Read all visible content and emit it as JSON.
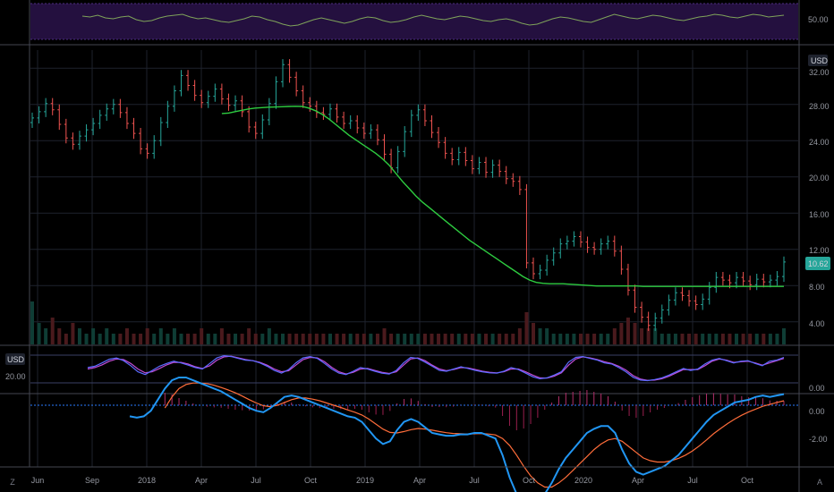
{
  "currency": "USD",
  "colors": {
    "background": "#000000",
    "grid": "#1e222d",
    "up": "#26a69a",
    "down": "#ef5350",
    "ma": "#2ecc40",
    "rsi_line": "#7fa35a",
    "rsi_band": "#24103f",
    "stoch_k": "#5b6bff",
    "stoch_d": "#c04cd6",
    "macd": "#2196f3",
    "signal": "#ff6d3a",
    "hist_pos": "#b22f6a",
    "hist_neg": "#9b1f4f",
    "zero_line": "#2a7bff",
    "last_price_bg": "#26a69a"
  },
  "corner_buttons": {
    "left": "Z",
    "right": "A"
  },
  "chart_data": [
    {
      "id": "rsi",
      "type": "line",
      "title": "",
      "y_tick_labels": [
        "50.00"
      ],
      "band": [
        30,
        70
      ],
      "series": [
        {
          "values": [
            56,
            55,
            57,
            54,
            53,
            55,
            56,
            52,
            50,
            51,
            54,
            56,
            57,
            58,
            55,
            53,
            54,
            52,
            50,
            49,
            51,
            53,
            56,
            55,
            52,
            50,
            47,
            45,
            46,
            49,
            52,
            54,
            52,
            50,
            48,
            50,
            53,
            55,
            54,
            51,
            49,
            50,
            52,
            55,
            57,
            55,
            53,
            52,
            54,
            56,
            55,
            53,
            51,
            50,
            52,
            53,
            51,
            48,
            46,
            47,
            50,
            53,
            55,
            54,
            52,
            50,
            49,
            52,
            55,
            58,
            56,
            54,
            53,
            55,
            57,
            56,
            54,
            52,
            51,
            53,
            55,
            56,
            58,
            57,
            55,
            54,
            56,
            58,
            57,
            55,
            56,
            57
          ]
        }
      ]
    },
    {
      "id": "price",
      "type": "candlestick",
      "title": "",
      "ylabel": "USD",
      "y_tick_labels": [
        "32.00",
        "28.00",
        "24.00",
        "20.00",
        "16.00",
        "12.00",
        "8.00",
        "4.00"
      ],
      "ylim": [
        1.5,
        34
      ],
      "last_price": "10.62",
      "x_tick_labels": [
        "Jun",
        "Sep",
        "2018",
        "Apr",
        "Jul",
        "Oct",
        "2019",
        "Apr",
        "Jul",
        "Oct",
        "2020",
        "Apr",
        "Jul",
        "Oct"
      ],
      "closes": [
        26.5,
        27.2,
        28.1,
        27.4,
        25.8,
        24.3,
        23.6,
        24.5,
        25.2,
        25.9,
        26.8,
        27.5,
        28.0,
        27.1,
        25.9,
        24.8,
        23.1,
        22.6,
        24.0,
        26.0,
        27.8,
        29.5,
        31.2,
        30.1,
        29.0,
        28.2,
        28.9,
        29.7,
        28.6,
        27.9,
        28.4,
        27.2,
        25.5,
        24.8,
        26.3,
        28.1,
        30.5,
        32.4,
        31.0,
        29.5,
        28.2,
        27.8,
        27.1,
        26.9,
        27.5,
        26.6,
        25.9,
        26.2,
        25.4,
        24.8,
        25.2,
        24.1,
        22.5,
        21.0,
        22.8,
        25.0,
        26.8,
        27.4,
        26.2,
        24.9,
        23.8,
        22.6,
        21.9,
        22.7,
        21.8,
        20.9,
        21.6,
        20.5,
        21.3,
        20.6,
        19.8,
        19.5,
        18.6,
        10.5,
        9.3,
        9.7,
        10.8,
        11.6,
        12.6,
        12.9,
        13.4,
        12.8,
        12.2,
        12.0,
        12.6,
        12.9,
        11.8,
        9.8,
        7.5,
        5.6,
        4.5,
        3.6,
        4.4,
        5.3,
        6.4,
        7.2,
        6.9,
        6.3,
        5.9,
        6.5,
        7.8,
        8.9,
        8.6,
        8.3,
        8.9,
        8.5,
        8.1,
        8.7,
        8.4,
        8.6,
        9.0,
        10.6
      ],
      "ma_start_index": 28,
      "ma": [
        27.0,
        27.05,
        27.2,
        27.35,
        27.5,
        27.6,
        27.65,
        27.7,
        27.72,
        27.75,
        27.78,
        27.8,
        27.78,
        27.6,
        27.3,
        26.9,
        26.4,
        25.8,
        25.2,
        24.6,
        24.1,
        23.6,
        23.1,
        22.6,
        22.0,
        21.3,
        20.4,
        19.5,
        18.7,
        17.9,
        17.2,
        16.6,
        16.0,
        15.4,
        14.8,
        14.2,
        13.6,
        13.0,
        12.5,
        12.0,
        11.5,
        11.0,
        10.5,
        10.0,
        9.5,
        9.0,
        8.6,
        8.35,
        8.25,
        8.2,
        8.2,
        8.2,
        8.15,
        8.1,
        8.05,
        8.0,
        7.95,
        7.95,
        7.95,
        7.95,
        7.95,
        7.95,
        7.95,
        7.9,
        7.9,
        7.9,
        7.9,
        7.9,
        7.9,
        7.9,
        7.9,
        7.9,
        7.9,
        7.9,
        7.9,
        7.9,
        7.9,
        7.9,
        7.9,
        7.9,
        7.9,
        7.9,
        7.9,
        7.9,
        7.9
      ],
      "volume": [
        0.8,
        0.4,
        0.3,
        0.5,
        0.3,
        0.2,
        0.4,
        0.3,
        0.2,
        0.3,
        0.2,
        0.3,
        0.2,
        0.2,
        0.3,
        0.2,
        0.2,
        0.3,
        0.2,
        0.3,
        0.2,
        0.3,
        0.2,
        0.2,
        0.2,
        0.3,
        0.2,
        0.2,
        0.3,
        0.2,
        0.2,
        0.2,
        0.3,
        0.2,
        0.2,
        0.3,
        0.2,
        0.2,
        0.2,
        0.2,
        0.2,
        0.2,
        0.2,
        0.2,
        0.2,
        0.2,
        0.2,
        0.2,
        0.2,
        0.2,
        0.2,
        0.2,
        0.3,
        0.2,
        0.2,
        0.2,
        0.2,
        0.2,
        0.2,
        0.2,
        0.2,
        0.2,
        0.2,
        0.2,
        0.2,
        0.2,
        0.2,
        0.2,
        0.2,
        0.2,
        0.2,
        0.2,
        0.3,
        0.6,
        0.4,
        0.3,
        0.3,
        0.2,
        0.2,
        0.2,
        0.2,
        0.2,
        0.2,
        0.2,
        0.2,
        0.2,
        0.3,
        0.4,
        0.5,
        0.4,
        0.3,
        0.3,
        0.3,
        0.2,
        0.2,
        0.2,
        0.2,
        0.2,
        0.2,
        0.2,
        0.2,
        0.2,
        0.2,
        0.2,
        0.2,
        0.2,
        0.2,
        0.2,
        0.2,
        0.2,
        0.2,
        0.3
      ]
    },
    {
      "id": "stochastic",
      "type": "line",
      "title": "",
      "ylabel": "USD",
      "y_tick_labels": [
        "20.00",
        "0.00"
      ],
      "ylim": [
        0,
        100
      ],
      "series": [
        {
          "values": [
            55,
            60,
            72,
            85,
            90,
            80,
            62,
            40,
            30,
            45,
            60,
            70,
            78,
            72,
            64,
            55,
            50,
            70,
            90,
            98,
            95,
            88,
            82,
            80,
            72,
            60,
            45,
            35,
            48,
            72,
            90,
            95,
            88,
            70,
            50,
            35,
            30,
            42,
            55,
            50,
            42,
            35,
            32,
            45,
            72,
            92,
            88,
            75,
            60,
            45,
            42,
            50,
            58,
            52,
            45,
            40,
            36,
            35,
            42,
            55,
            48,
            35,
            22,
            15,
            18,
            28,
            40,
            75,
            92,
            95,
            88,
            82,
            72,
            68,
            55,
            40,
            20,
            10,
            8,
            12,
            18,
            28,
            40,
            52,
            45,
            50,
            68,
            82,
            88,
            80,
            72,
            78,
            80,
            70,
            62,
            78,
            82,
            92
          ]
        },
        {
          "values": [
            50,
            55,
            65,
            78,
            86,
            84,
            70,
            50,
            36,
            40,
            52,
            65,
            74,
            74,
            68,
            58,
            52,
            62,
            82,
            94,
            96,
            90,
            84,
            80,
            74,
            64,
            50,
            40,
            44,
            64,
            84,
            92,
            90,
            76,
            56,
            40,
            32,
            38,
            50,
            52,
            45,
            38,
            34,
            40,
            64,
            86,
            90,
            80,
            64,
            50,
            44,
            48,
            55,
            54,
            48,
            42,
            38,
            36,
            40,
            50,
            50,
            40,
            28,
            18,
            17,
            24,
            36,
            64,
            86,
            94,
            90,
            84,
            76,
            70,
            60,
            46,
            26,
            14,
            9,
            10,
            15,
            24,
            36,
            48,
            48,
            48,
            62,
            78,
            86,
            82,
            74,
            76,
            78,
            72,
            64,
            72,
            80,
            88
          ]
        }
      ]
    },
    {
      "id": "macd",
      "type": "line",
      "title": "",
      "y_tick_labels": [
        "0.00",
        "-2.00"
      ],
      "ylim": [
        -4.0,
        1.6
      ],
      "series": [
        {
          "values": [
            -0.4,
            -0.45,
            -0.4,
            -0.2,
            0.2,
            0.6,
            0.9,
            1.0,
            1.0,
            0.9,
            0.8,
            0.7,
            0.6,
            0.5,
            0.35,
            0.2,
            0.05,
            -0.1,
            -0.2,
            -0.25,
            -0.1,
            0.1,
            0.3,
            0.35,
            0.3,
            0.2,
            0.1,
            0.0,
            -0.1,
            -0.2,
            -0.3,
            -0.4,
            -0.45,
            -0.6,
            -0.9,
            -1.2,
            -1.4,
            -1.3,
            -0.9,
            -0.6,
            -0.5,
            -0.6,
            -0.8,
            -1.0,
            -1.05,
            -1.1,
            -1.1,
            -1.05,
            -1.05,
            -1.0,
            -1.0,
            -1.1,
            -1.2,
            -1.8,
            -2.6,
            -3.2,
            -3.5,
            -3.6,
            -3.5,
            -3.2,
            -2.8,
            -2.3,
            -1.9,
            -1.6,
            -1.3,
            -1.0,
            -0.85,
            -0.75,
            -0.75,
            -1.0,
            -1.6,
            -2.1,
            -2.4,
            -2.5,
            -2.4,
            -2.3,
            -2.2,
            -2.0,
            -1.8,
            -1.5,
            -1.2,
            -0.9,
            -0.6,
            -0.35,
            -0.2,
            -0.05,
            0.1,
            0.15,
            0.2,
            0.3,
            0.35,
            0.3,
            0.35,
            0.4
          ]
        },
        {
          "values": [
            null,
            null,
            null,
            null,
            null,
            -0.1,
            0.3,
            0.6,
            0.75,
            0.8,
            0.8,
            0.78,
            0.72,
            0.64,
            0.55,
            0.45,
            0.33,
            0.2,
            0.08,
            -0.02,
            -0.05,
            0.0,
            0.1,
            0.2,
            0.26,
            0.26,
            0.22,
            0.16,
            0.08,
            0.0,
            -0.08,
            -0.17,
            -0.25,
            -0.35,
            -0.5,
            -0.68,
            -0.86,
            -0.98,
            -1.0,
            -0.95,
            -0.88,
            -0.84,
            -0.86,
            -0.9,
            -0.95,
            -0.99,
            -1.02,
            -1.03,
            -1.04,
            -1.03,
            -1.02,
            -1.04,
            -1.07,
            -1.2,
            -1.45,
            -1.8,
            -2.2,
            -2.55,
            -2.8,
            -2.95,
            -2.95,
            -2.8,
            -2.6,
            -2.35,
            -2.1,
            -1.85,
            -1.6,
            -1.4,
            -1.25,
            -1.2,
            -1.3,
            -1.5,
            -1.7,
            -1.9,
            -2.0,
            -2.05,
            -2.05,
            -2.0,
            -1.92,
            -1.8,
            -1.65,
            -1.46,
            -1.25,
            -1.03,
            -0.84,
            -0.66,
            -0.5,
            -0.36,
            -0.24,
            -0.14,
            -0.04,
            0.03,
            0.1,
            0.16
          ]
        }
      ]
    }
  ]
}
